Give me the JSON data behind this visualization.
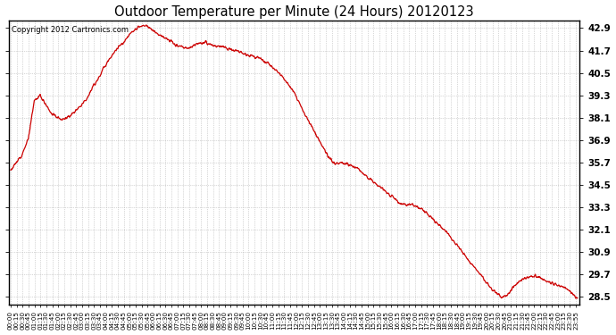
{
  "title": "Outdoor Temperature per Minute (24 Hours) 20120123",
  "copyright_text": "Copyright 2012 Cartronics.com",
  "line_color": "#cc0000",
  "background_color": "#ffffff",
  "plot_bg_color": "#ffffff",
  "grid_color": "#aaaaaa",
  "yticks": [
    28.5,
    29.7,
    30.9,
    32.1,
    33.3,
    34.5,
    35.7,
    36.9,
    38.1,
    39.3,
    40.5,
    41.7,
    42.9
  ],
  "ylim": [
    28.1,
    43.3
  ],
  "xtick_labels": [
    "00:00",
    "00:15",
    "00:30",
    "00:45",
    "01:00",
    "01:15",
    "01:30",
    "01:45",
    "02:00",
    "02:15",
    "02:30",
    "02:45",
    "03:00",
    "03:15",
    "03:30",
    "03:45",
    "04:00",
    "04:15",
    "04:30",
    "04:45",
    "05:00",
    "05:15",
    "05:30",
    "05:45",
    "06:00",
    "06:15",
    "06:30",
    "06:45",
    "07:00",
    "07:15",
    "07:30",
    "07:45",
    "08:00",
    "08:15",
    "08:30",
    "08:45",
    "09:00",
    "09:15",
    "09:30",
    "09:45",
    "10:00",
    "10:15",
    "10:30",
    "10:45",
    "11:00",
    "11:15",
    "11:30",
    "11:45",
    "12:00",
    "12:15",
    "12:30",
    "12:45",
    "13:00",
    "13:15",
    "13:30",
    "13:45",
    "14:00",
    "14:15",
    "14:30",
    "14:45",
    "15:00",
    "15:15",
    "15:30",
    "15:45",
    "16:00",
    "16:15",
    "16:30",
    "16:45",
    "17:00",
    "17:15",
    "17:30",
    "17:45",
    "18:00",
    "18:15",
    "18:30",
    "18:45",
    "19:00",
    "19:15",
    "19:30",
    "19:45",
    "20:00",
    "20:15",
    "20:30",
    "20:45",
    "21:00",
    "21:15",
    "21:30",
    "21:45",
    "22:00",
    "22:15",
    "22:30",
    "22:45",
    "23:00",
    "23:15",
    "23:30",
    "23:55"
  ],
  "key_points_minutes": [
    0,
    15,
    30,
    45,
    60,
    75,
    90,
    105,
    120,
    135,
    150,
    165,
    180,
    195,
    210,
    225,
    240,
    255,
    270,
    285,
    300,
    315,
    330,
    345,
    360,
    375,
    390,
    405,
    420,
    435,
    450,
    465,
    480,
    495,
    510,
    525,
    540,
    555,
    570,
    585,
    600,
    615,
    630,
    645,
    660,
    675,
    690,
    705,
    720,
    735,
    750,
    765,
    780,
    795,
    810,
    825,
    840,
    855,
    870,
    885,
    900,
    915,
    930,
    945,
    960,
    975,
    990,
    1005,
    1020,
    1035,
    1050,
    1065,
    1080,
    1095,
    1110,
    1125,
    1140,
    1155,
    1170,
    1185,
    1200,
    1215,
    1230,
    1245,
    1260,
    1275,
    1290,
    1305,
    1320,
    1335,
    1350,
    1365,
    1380,
    1395,
    1410,
    1435
  ],
  "key_points_values": [
    35.3,
    35.7,
    36.2,
    37.0,
    39.0,
    39.3,
    38.8,
    38.3,
    38.1,
    38.0,
    38.2,
    38.5,
    38.8,
    39.2,
    39.8,
    40.3,
    40.9,
    41.4,
    41.8,
    42.1,
    42.5,
    42.8,
    43.0,
    43.0,
    42.8,
    42.6,
    42.4,
    42.2,
    42.0,
    41.9,
    41.8,
    42.0,
    42.1,
    42.1,
    42.0,
    41.9,
    41.9,
    41.8,
    41.7,
    41.6,
    41.5,
    41.4,
    41.3,
    41.1,
    40.9,
    40.6,
    40.3,
    39.9,
    39.4,
    38.8,
    38.2,
    37.6,
    37.0,
    36.4,
    35.9,
    35.6,
    35.7,
    35.6,
    35.5,
    35.3,
    35.0,
    34.8,
    34.5,
    34.3,
    34.0,
    33.8,
    33.5,
    33.4,
    33.5,
    33.3,
    33.1,
    32.8,
    32.5,
    32.2,
    31.9,
    31.5,
    31.1,
    30.7,
    30.3,
    29.9,
    29.5,
    29.1,
    28.8,
    28.5,
    28.6,
    29.0,
    29.3,
    29.5,
    29.6,
    29.6,
    29.5,
    29.3,
    29.2,
    29.1,
    29.0,
    28.5
  ]
}
